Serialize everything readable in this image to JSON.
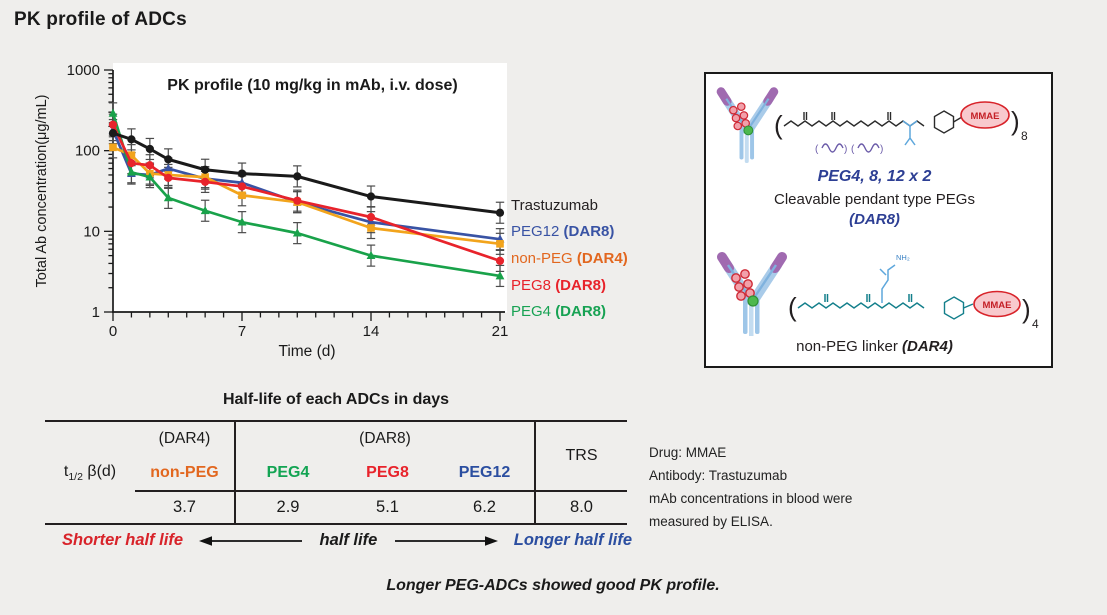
{
  "title": "PK profile of ADCs",
  "chart_data": {
    "type": "line",
    "title": "PK profile (10 mg/kg in mAb, i.v. dose)",
    "xlabel": "Time (d)",
    "ylabel": "Total Ab concentration(μg/mL)",
    "yscale": "log",
    "ylim": [
      1,
      1000
    ],
    "y_ticks": [
      1000,
      100,
      10,
      1
    ],
    "xlim": [
      0,
      21
    ],
    "x_major_ticks": [
      0,
      7,
      14,
      21
    ],
    "x_minor_tick_step": 1,
    "grid": false,
    "legend_position": "right-outside",
    "error_bars": "shown on data points (values approximate)",
    "x": [
      0,
      1,
      2,
      3,
      5,
      7,
      10,
      14,
      21
    ],
    "series": [
      {
        "name": "Trastuzumab",
        "color": "#1a1a1a",
        "marker": "circle",
        "values": [
          165,
          138,
          105,
          78,
          58,
          52,
          48,
          27,
          17
        ]
      },
      {
        "name": "PEG12 (DAR8)",
        "color": "#3953a4",
        "marker": "triangle-up",
        "values": [
          180,
          52,
          50,
          60,
          45,
          40,
          23,
          13,
          8
        ]
      },
      {
        "name": "non-PEG (DAR4)",
        "color": "#f2a41c",
        "marker": "square",
        "values": [
          110,
          88,
          52,
          50,
          47,
          28,
          23,
          11,
          7
        ]
      },
      {
        "name": "PEG8 (DAR8)",
        "color": "#e8232b",
        "marker": "circle",
        "values": [
          210,
          70,
          66,
          46,
          41,
          36,
          24,
          15,
          4.3
        ]
      },
      {
        "name": "PEG4 (DAR8)",
        "color": "#19a24a",
        "marker": "triangle-up",
        "values": [
          290,
          54,
          47,
          26,
          18,
          13,
          9.5,
          5,
          2.8
        ]
      }
    ]
  },
  "legend": {
    "items": [
      {
        "name": "Trastuzumab",
        "dar": "",
        "color": "#231f20"
      },
      {
        "name": "PEG12 ",
        "dar": "(DAR8)",
        "color": "#3953a4"
      },
      {
        "name": "non-PEG ",
        "dar": "(DAR4)",
        "color": "#e2671f"
      },
      {
        "name": "PEG8 ",
        "dar": "(DAR8)",
        "color": "#e8232b"
      },
      {
        "name": "PEG4 ",
        "dar": "(DAR8)",
        "color": "#17a253"
      }
    ]
  },
  "structure_panel": {
    "peg_label": "PEG4, 8, 12 x 2",
    "top_caption": "Cleavable pendant type PEGs",
    "top_dar": "(DAR8)",
    "bottom_caption": "non-PEG linker ",
    "bottom_dar": "(DAR4)",
    "drug_bubble": "MMAE",
    "top_repeat": "8",
    "bottom_repeat": "4"
  },
  "half_life_table": {
    "title": "Half-life of each ADCs in days",
    "row_label": {
      "t": "t",
      "sub": "1/2",
      "rest": " β(d)"
    },
    "group_headers": {
      "dar4": "(DAR4)",
      "dar8": "(DAR8)",
      "trs": "TRS"
    },
    "columns": [
      {
        "label": "non-PEG",
        "color": "#e2671f",
        "value": "3.7"
      },
      {
        "label": "PEG4",
        "color": "#13a453",
        "value": "2.9"
      },
      {
        "label": "PEG8",
        "color": "#e8232b",
        "value": "5.1"
      },
      {
        "label": "PEG12",
        "color": "#2b4ea0",
        "value": "6.2"
      }
    ],
    "trs_value": "8.0"
  },
  "halflife_arrows": {
    "shorter": "Shorter half life",
    "center": "half life",
    "longer": "Longer half life",
    "shorter_color": "#d8232a",
    "longer_color": "#2b4ea0"
  },
  "notes": "Drug: MMAE\nAntibody: Trastuzumab\nmAb concentrations in blood were\nmeasured by ELISA.",
  "footer": "Longer PEG-ADCs showed good PK profile."
}
